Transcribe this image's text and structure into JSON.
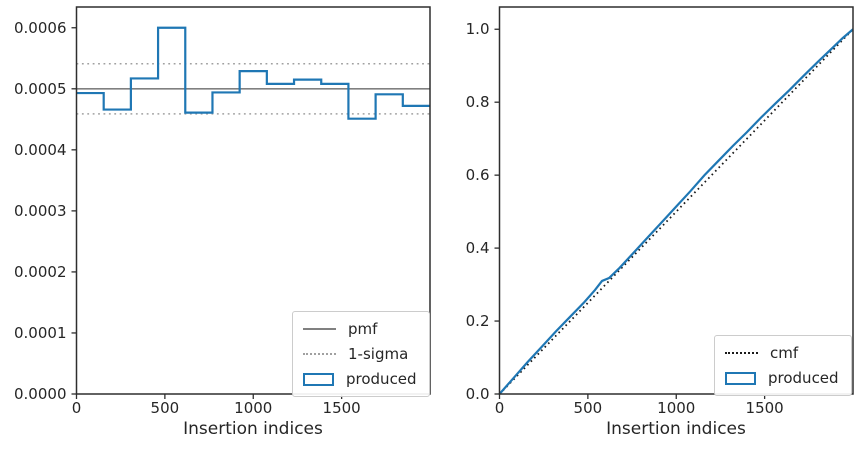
{
  "colors": {
    "produced_blue": "#1f77b4",
    "pmf_gray": "#808080",
    "sigma_gray": "#a0a0a0",
    "cmf_black": "#1a1a1a",
    "frame": "#2e2e2e",
    "text": "#262626",
    "legend_border": "#cccccc"
  },
  "chart_data": [
    {
      "type": "bar",
      "subtype": "step-histogram",
      "title": "",
      "xlabel": "Insertion indices",
      "ylabel": "",
      "xlim": [
        0,
        2000
      ],
      "ylim": [
        0,
        0.000634
      ],
      "grid": false,
      "xticks": [
        0,
        500,
        1000,
        1500
      ],
      "xtick_labels": [
        "0",
        "500",
        "1000",
        "1500"
      ],
      "yticks": [
        0,
        0.0001,
        0.0002,
        0.0003,
        0.0004,
        0.0005,
        0.0006
      ],
      "ytick_labels": [
        "0.0000",
        "0.0001",
        "0.0002",
        "0.0003",
        "0.0004",
        "0.0005",
        "0.0006"
      ],
      "bins": 13,
      "bin_values": [
        0.000493,
        0.000466,
        0.000517,
        0.0006,
        0.000461,
        0.000494,
        0.000529,
        0.000508,
        0.000515,
        0.000508,
        0.000451,
        0.000491,
        0.000472
      ],
      "pmf_value": 0.0005,
      "sigma_upper": 0.000541,
      "sigma_lower": 0.000459,
      "legend_position": "lower-right",
      "legend": [
        {
          "swatch": "solid-gray-line",
          "label": "pmf"
        },
        {
          "swatch": "dotted-gray-line",
          "label": "1-sigma"
        },
        {
          "swatch": "blue-rect",
          "label": "produced"
        }
      ]
    },
    {
      "type": "line",
      "title": "",
      "xlabel": "Insertion indices",
      "ylabel": "",
      "xlim": [
        0,
        2000
      ],
      "ylim": [
        0,
        1.061
      ],
      "grid": false,
      "xticks": [
        0,
        500,
        1000,
        1500
      ],
      "xtick_labels": [
        "0",
        "500",
        "1000",
        "1500"
      ],
      "yticks": [
        0,
        0.2,
        0.4,
        0.6,
        0.8,
        1.0
      ],
      "ytick_labels": [
        "0.0",
        "0.2",
        "0.4",
        "0.6",
        "0.8",
        "1.0"
      ],
      "series": [
        {
          "name": "cmf",
          "style": "dotted-black",
          "x": [
            0,
            2000
          ],
          "y": [
            0,
            1.0
          ]
        },
        {
          "name": "produced",
          "style": "solid-blue",
          "x": [
            0,
            80,
            160,
            240,
            320,
            400,
            480,
            540,
            580,
            620,
            680,
            760,
            840,
            920,
            1000,
            1080,
            1160,
            1240,
            1320,
            1400,
            1480,
            1560,
            1640,
            1720,
            1800,
            1880,
            1940,
            2000
          ],
          "y": [
            0.0,
            0.044,
            0.088,
            0.13,
            0.172,
            0.212,
            0.252,
            0.285,
            0.31,
            0.318,
            0.346,
            0.388,
            0.43,
            0.472,
            0.514,
            0.556,
            0.6,
            0.64,
            0.68,
            0.718,
            0.758,
            0.796,
            0.833,
            0.872,
            0.91,
            0.947,
            0.975,
            1.0
          ]
        }
      ],
      "legend_position": "lower-right",
      "legend": [
        {
          "swatch": "dotted-black-line",
          "label": "cmf"
        },
        {
          "swatch": "blue-rect",
          "label": "produced"
        }
      ]
    }
  ]
}
